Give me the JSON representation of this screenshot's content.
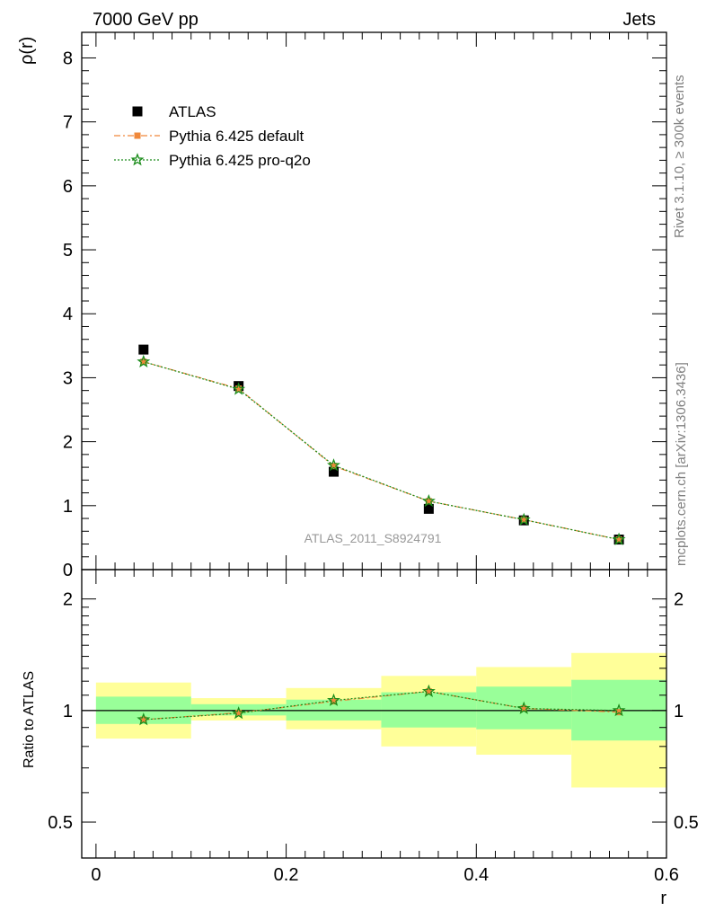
{
  "header": {
    "title_left": "7000 GeV pp",
    "title_right": "Jets"
  },
  "side_texts": {
    "rivet": "Rivet 3.1.10, ≥ 300k events",
    "mcplots": "mcplots.cern.ch [arXiv:1306.3436]"
  },
  "watermark": "ATLAS_2011_S8924791",
  "colors": {
    "atlas": "#000000",
    "pythia_default": "#f0883a",
    "pythia_proq2o": "#1a8c1a",
    "band_inner": "#99ff99",
    "band_outer": "#ffff99"
  },
  "chart_data": [
    {
      "type": "scatter",
      "panel": "main",
      "ylabel": "ρ(r)",
      "xlim": [
        -0.015,
        0.6
      ],
      "ylim": [
        0,
        8.4
      ],
      "yticks": [
        0,
        1,
        2,
        3,
        4,
        5,
        6,
        7,
        8
      ],
      "ytick_labels": [
        "0",
        "1",
        "2",
        "3",
        "4",
        "5",
        "6",
        "7",
        "8"
      ],
      "legend": {
        "position": "top-left",
        "entries": [
          "ATLAS",
          "Pythia 6.425 default",
          "Pythia 6.425 pro-q2o"
        ]
      },
      "series": [
        {
          "name": "ATLAS",
          "marker": "square",
          "x": [
            0.05,
            0.15,
            0.25,
            0.35,
            0.45,
            0.55
          ],
          "y": [
            3.44,
            2.87,
            1.53,
            0.95,
            0.77,
            0.47
          ]
        },
        {
          "name": "Pythia 6.425 default",
          "marker": "square-small",
          "x": [
            0.05,
            0.15,
            0.25,
            0.35,
            0.45,
            0.55
          ],
          "y": [
            3.25,
            2.83,
            1.62,
            1.07,
            0.78,
            0.47
          ]
        },
        {
          "name": "Pythia 6.425 pro-q2o",
          "marker": "star",
          "x": [
            0.05,
            0.15,
            0.25,
            0.35,
            0.45,
            0.55
          ],
          "y": [
            3.25,
            2.82,
            1.63,
            1.07,
            0.78,
            0.47
          ]
        }
      ]
    },
    {
      "type": "line",
      "panel": "ratio",
      "xlabel": "r",
      "ylabel": "Ratio to ATLAS",
      "xlim": [
        -0.015,
        0.6
      ],
      "ylim": [
        0.4,
        2.4
      ],
      "log_y": true,
      "xticks": [
        0,
        0.2,
        0.4,
        0.6
      ],
      "xtick_labels": [
        "0",
        "0.2",
        "0.4",
        "0.6"
      ],
      "yticks": [
        0.5,
        1,
        2
      ],
      "ytick_labels": [
        "0.5",
        "1",
        "2"
      ],
      "bands": [
        {
          "x0": 0.0,
          "x1": 0.1,
          "inner": [
            0.92,
            1.09
          ],
          "outer": [
            0.84,
            1.19
          ]
        },
        {
          "x0": 0.1,
          "x1": 0.2,
          "inner": [
            0.97,
            1.04
          ],
          "outer": [
            0.94,
            1.08
          ]
        },
        {
          "x0": 0.2,
          "x1": 0.3,
          "inner": [
            0.94,
            1.07
          ],
          "outer": [
            0.89,
            1.15
          ]
        },
        {
          "x0": 0.3,
          "x1": 0.4,
          "inner": [
            0.9,
            1.12
          ],
          "outer": [
            0.8,
            1.24
          ]
        },
        {
          "x0": 0.4,
          "x1": 0.5,
          "inner": [
            0.89,
            1.16
          ],
          "outer": [
            0.76,
            1.31
          ]
        },
        {
          "x0": 0.5,
          "x1": 0.6,
          "inner": [
            0.83,
            1.21
          ],
          "outer": [
            0.62,
            1.43
          ]
        }
      ],
      "series": [
        {
          "name": "Pythia 6.425 default",
          "x": [
            0.05,
            0.15,
            0.25,
            0.35,
            0.45,
            0.55
          ],
          "y": [
            0.945,
            0.986,
            1.059,
            1.126,
            1.013,
            0.99
          ]
        },
        {
          "name": "Pythia 6.425 pro-q2o",
          "x": [
            0.05,
            0.15,
            0.25,
            0.35,
            0.45,
            0.55
          ],
          "y": [
            0.945,
            0.983,
            1.065,
            1.126,
            1.013,
            1.0
          ]
        }
      ]
    }
  ]
}
